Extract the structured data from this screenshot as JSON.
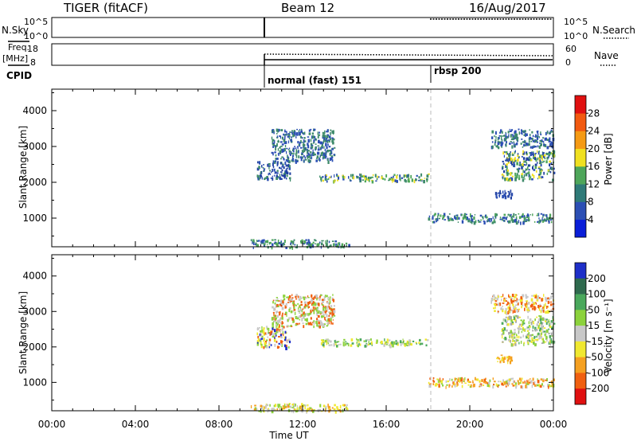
{
  "header": {
    "station": "TIGER (fitACF)",
    "beam": "Beam 12",
    "date": "16/Aug/2017"
  },
  "top_panels": {
    "nsky_label": "N.Sky",
    "nsky_ticks": [
      "10^5",
      "10^0"
    ],
    "nsearch_label": "N.Search",
    "nsearch_ticks": [
      "10^5",
      "10^0"
    ],
    "freq_label_line1": "Freq.",
    "freq_label_line2": "[MHz]",
    "freq_ticks": [
      "18",
      "8"
    ],
    "nave_label": "Nave",
    "nave_ticks": [
      "60",
      "0"
    ],
    "cpid_label": "CPID",
    "cpid_modes": [
      {
        "label": "normal (fast) 151",
        "start_hour": 9.6
      },
      {
        "label": "rbsp 200",
        "start_hour": 18.0
      }
    ]
  },
  "chart_data": [
    {
      "type": "heatmap",
      "name": "power",
      "ylabel": "Slant Range [km]",
      "ylim": [
        200,
        4600
      ],
      "xlim_hours": [
        0,
        24
      ],
      "yticks": [
        1000,
        2000,
        3000,
        4000
      ],
      "colorbar": {
        "label": "Power [dB]",
        "ticks": [
          "4",
          "8",
          "12",
          "16",
          "20",
          "24",
          "28"
        ],
        "colors": [
          "#0a1ed8",
          "#2c4fb4",
          "#2f7a78",
          "#4ea65a",
          "#f0e020",
          "#f59a14",
          "#f25a10",
          "#e01010"
        ]
      },
      "scatter_regions": [
        {
          "x": [
            9.8,
            11.4
          ],
          "y": [
            2100,
            2600
          ],
          "colors": [
            "#2c4fb4",
            "#1f3fa0",
            "#3e8a6a"
          ]
        },
        {
          "x": [
            10.5,
            13.5
          ],
          "y": [
            2600,
            3500
          ],
          "colors": [
            "#2c4fb4",
            "#3e8a6a"
          ]
        },
        {
          "x": [
            12.8,
            18.0
          ],
          "y": [
            2050,
            2250
          ],
          "colors": [
            "#4ea65a",
            "#3e8a6a",
            "#f0e020",
            "#2c4fb4"
          ]
        },
        {
          "x": [
            9.5,
            14.2
          ],
          "y": [
            200,
            420
          ],
          "colors": [
            "#2c4fb4",
            "#4ea65a",
            "#3e8a6a"
          ]
        },
        {
          "x": [
            18.0,
            24.0
          ],
          "y": [
            900,
            1150
          ],
          "colors": [
            "#3e8a6a",
            "#2c4fb4",
            "#4ea65a"
          ]
        },
        {
          "x": [
            21.5,
            24.0
          ],
          "y": [
            2100,
            2900
          ],
          "colors": [
            "#1f3fa0",
            "#2c4fb4",
            "#3e8a6a",
            "#4ea65a",
            "#f0e020"
          ]
        },
        {
          "x": [
            21.2,
            22.0
          ],
          "y": [
            1600,
            1800
          ],
          "colors": [
            "#2c4fb4",
            "#1f3fa0"
          ]
        },
        {
          "x": [
            21.0,
            24.0
          ],
          "y": [
            3000,
            3500
          ],
          "colors": [
            "#2c4fb4",
            "#3e8a6a"
          ]
        }
      ]
    },
    {
      "type": "heatmap",
      "name": "velocity",
      "ylabel": "Slant Range [km]",
      "ylim": [
        200,
        4600
      ],
      "xlim_hours": [
        0,
        24
      ],
      "xticks": [
        "00:00",
        "04:00",
        "08:00",
        "12:00",
        "16:00",
        "20:00",
        "00:00"
      ],
      "xlabel": "Time UT",
      "yticks": [
        1000,
        2000,
        3000,
        4000
      ],
      "colorbar": {
        "label": "Velocity [m s⁻¹]",
        "ticks": [
          "200",
          "100",
          "50",
          "15",
          "-15",
          "-50",
          "-100",
          "-200"
        ],
        "colors": [
          "#1e2fc8",
          "#2f6a4e",
          "#4aa85c",
          "#8cd23c",
          "#c8c8c8",
          "#f0e830",
          "#f5a020",
          "#f06010",
          "#e01010"
        ]
      },
      "scatter_regions": [
        {
          "x": [
            9.8,
            11.4
          ],
          "y": [
            2000,
            2600
          ],
          "colors": [
            "#c8c8c8",
            "#8cd23c",
            "#f06010",
            "#1e2fc8",
            "#f0e830"
          ]
        },
        {
          "x": [
            10.5,
            13.5
          ],
          "y": [
            2600,
            3500
          ],
          "colors": [
            "#c8c8c8",
            "#f06010",
            "#8cd23c"
          ]
        },
        {
          "x": [
            12.8,
            18.0
          ],
          "y": [
            2050,
            2250
          ],
          "colors": [
            "#8cd23c",
            "#f0e830",
            "#c8c8c8",
            "#4aa85c"
          ]
        },
        {
          "x": [
            9.5,
            14.2
          ],
          "y": [
            200,
            420
          ],
          "colors": [
            "#f0e830",
            "#8cd23c",
            "#c8c8c8",
            "#f5a020"
          ]
        },
        {
          "x": [
            18.0,
            24.0
          ],
          "y": [
            900,
            1150
          ],
          "colors": [
            "#f0e830",
            "#c8c8c8",
            "#f5a020",
            "#8cd23c",
            "#f06010"
          ]
        },
        {
          "x": [
            21.5,
            24.0
          ],
          "y": [
            2100,
            2900
          ],
          "colors": [
            "#c8c8c8",
            "#a8a8a8",
            "#8cd23c",
            "#4aa85c",
            "#f0e830"
          ]
        },
        {
          "x": [
            21.2,
            22.0
          ],
          "y": [
            1600,
            1800
          ],
          "colors": [
            "#f0e830",
            "#f5a020"
          ]
        },
        {
          "x": [
            21.0,
            24.0
          ],
          "y": [
            3000,
            3500
          ],
          "colors": [
            "#f06010",
            "#f0e830",
            "#c8c8c8"
          ]
        }
      ]
    }
  ]
}
